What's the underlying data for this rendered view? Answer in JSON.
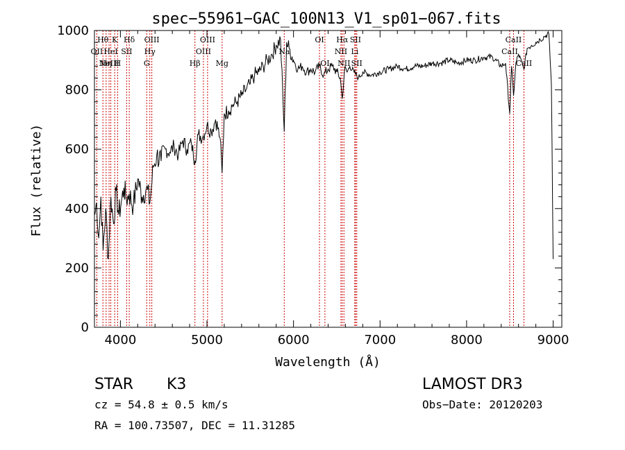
{
  "chart_data": {
    "type": "line",
    "title": "spec−55961−GAC_100N13_V1_sp01−067.fits",
    "xlabel": "Wavelength (Å)",
    "ylabel": "Flux (relative)",
    "xlim": [
      3700,
      9100
    ],
    "ylim": [
      0,
      1000
    ],
    "x_ticks": [
      4000,
      5000,
      6000,
      7000,
      8000,
      9000
    ],
    "x_tick_labels": [
      "4000",
      "5000",
      "6000",
      "7000",
      "8000",
      "9000"
    ],
    "y_ticks": [
      0,
      200,
      400,
      600,
      800,
      1000
    ],
    "y_tick_labels": [
      "0",
      "200",
      "400",
      "600",
      "800",
      "1000"
    ],
    "series": [
      {
        "name": "spectrum",
        "x": [
          3705,
          3725,
          3750,
          3775,
          3800,
          3830,
          3860,
          3890,
          3920,
          3950,
          3980,
          4010,
          4040,
          4070,
          4100,
          4150,
          4200,
          4250,
          4300,
          4340,
          4380,
          4420,
          4470,
          4520,
          4570,
          4620,
          4670,
          4720,
          4770,
          4820,
          4861,
          4900,
          4950,
          5000,
          5050,
          5100,
          5150,
          5175,
          5200,
          5250,
          5300,
          5350,
          5400,
          5450,
          5500,
          5550,
          5600,
          5650,
          5700,
          5750,
          5800,
          5850,
          5893,
          5920,
          5950,
          6000,
          6050,
          6100,
          6150,
          6200,
          6250,
          6300,
          6350,
          6400,
          6450,
          6500,
          6540,
          6563,
          6590,
          6620,
          6650,
          6700,
          6750,
          6800,
          6900,
          7000,
          7100,
          7200,
          7300,
          7400,
          7500,
          7600,
          7700,
          7800,
          7900,
          8000,
          8100,
          8200,
          8300,
          8400,
          8450,
          8498,
          8520,
          8542,
          8570,
          8600,
          8662,
          8700,
          8750,
          8800,
          8850,
          8900,
          8950,
          8980,
          9000
        ],
        "y": [
          380,
          420,
          300,
          440,
          260,
          400,
          230,
          440,
          350,
          460,
          380,
          420,
          470,
          430,
          450,
          410,
          500,
          440,
          470,
          420,
          540,
          580,
          560,
          600,
          590,
          610,
          580,
          630,
          600,
          620,
          560,
          650,
          640,
          680,
          660,
          700,
          640,
          520,
          720,
          730,
          750,
          760,
          780,
          800,
          820,
          850,
          860,
          880,
          900,
          920,
          950,
          970,
          660,
          960,
          940,
          900,
          870,
          880,
          860,
          870,
          860,
          880,
          850,
          870,
          880,
          860,
          840,
          770,
          870,
          860,
          880,
          860,
          840,
          860,
          850,
          860,
          870,
          880,
          870,
          880,
          880,
          890,
          890,
          900,
          890,
          900,
          900,
          910,
          910,
          880,
          890,
          720,
          880,
          780,
          890,
          920,
          870,
          940,
          950,
          960,
          970,
          980,
          990,
          820,
          230
        ]
      }
    ],
    "lines": [
      {
        "wl": 3727,
        "label": "OII",
        "row": 1
      },
      {
        "wl": 3798,
        "label": "Hθ",
        "row": 0
      },
      {
        "wl": 3835,
        "label": "Hη",
        "row": 2
      },
      {
        "wl": 3869,
        "label": "NeIII",
        "row": 2
      },
      {
        "wl": 3889,
        "label": "HeI",
        "row": 1
      },
      {
        "wl": 3934,
        "label": "K",
        "row": 0
      },
      {
        "wl": 3968,
        "label": "H",
        "row": 2
      },
      {
        "wl": 4072,
        "label": "SII",
        "row": 1
      },
      {
        "wl": 4102,
        "label": "Hδ",
        "row": 0
      },
      {
        "wl": 4304,
        "label": "G",
        "row": 2
      },
      {
        "wl": 4340,
        "label": "Hγ",
        "row": 1
      },
      {
        "wl": 4363,
        "label": "OIII",
        "row": 0
      },
      {
        "wl": 4861,
        "label": "Hβ",
        "row": 2
      },
      {
        "wl": 4959,
        "label": "OIII",
        "row": 1
      },
      {
        "wl": 5007,
        "label": "OIII",
        "row": 0
      },
      {
        "wl": 5175,
        "label": "Mg",
        "row": 2
      },
      {
        "wl": 5893,
        "label": "Na",
        "row": 1
      },
      {
        "wl": 6300,
        "label": "OI",
        "row": 0
      },
      {
        "wl": 6363,
        "label": "OI",
        "row": 2
      },
      {
        "wl": 6548,
        "label": "NII",
        "row": 1
      },
      {
        "wl": 6563,
        "label": "Hα",
        "row": 0
      },
      {
        "wl": 6583,
        "label": "NII",
        "row": 2
      },
      {
        "wl": 6708,
        "label": "Li",
        "row": 1
      },
      {
        "wl": 6716,
        "label": "SII",
        "row": 0
      },
      {
        "wl": 6731,
        "label": "SII",
        "row": 2
      },
      {
        "wl": 8498,
        "label": "CaII",
        "row": 1
      },
      {
        "wl": 8542,
        "label": "CaII",
        "row": 0
      },
      {
        "wl": 8662,
        "label": "CaII",
        "row": 2
      }
    ]
  },
  "info": {
    "class": "STAR",
    "subclass": "K3",
    "redshift": "cz = 54.8 ± 0.5 km/s",
    "coords": "RA = 100.73507, DEC =  11.31285",
    "survey": "LAMOST DR3",
    "obsdate": "Obs−Date: 20120203"
  },
  "colors": {
    "spectrum": "#000000",
    "line_markers": "#cc0000",
    "background": "#ffffff"
  }
}
